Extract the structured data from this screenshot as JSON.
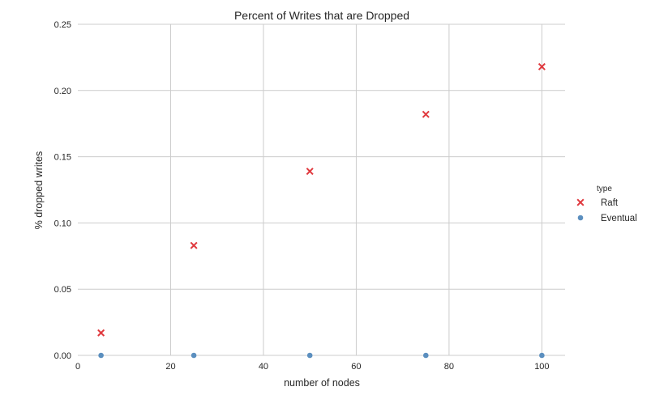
{
  "chart_data": {
    "type": "scatter",
    "title": "Percent of Writes that are Dropped",
    "xlabel": "number of nodes",
    "ylabel": "% dropped writes",
    "xlim": [
      0,
      105
    ],
    "ylim": [
      0,
      0.25
    ],
    "xticks": [
      0,
      20,
      40,
      60,
      80,
      100
    ],
    "xtick_labels": [
      "0",
      "20",
      "40",
      "60",
      "80",
      "100"
    ],
    "yticks": [
      0,
      0.05,
      0.1,
      0.15,
      0.2,
      0.25
    ],
    "ytick_labels": [
      "0.00",
      "0.05",
      "0.10",
      "0.15",
      "0.20",
      "0.25"
    ],
    "grid": true,
    "legend": {
      "title": "type",
      "placement": "right"
    },
    "series": [
      {
        "name": "Raft",
        "marker": "x",
        "color": "#e0393e",
        "x": [
          5,
          25,
          50,
          75,
          100
        ],
        "y": [
          0.017,
          0.083,
          0.139,
          0.182,
          0.218
        ]
      },
      {
        "name": "Eventual",
        "marker": "o",
        "color": "#5b8fbf",
        "x": [
          5,
          25,
          50,
          75,
          100
        ],
        "y": [
          0,
          0,
          0,
          0,
          0
        ]
      }
    ]
  }
}
